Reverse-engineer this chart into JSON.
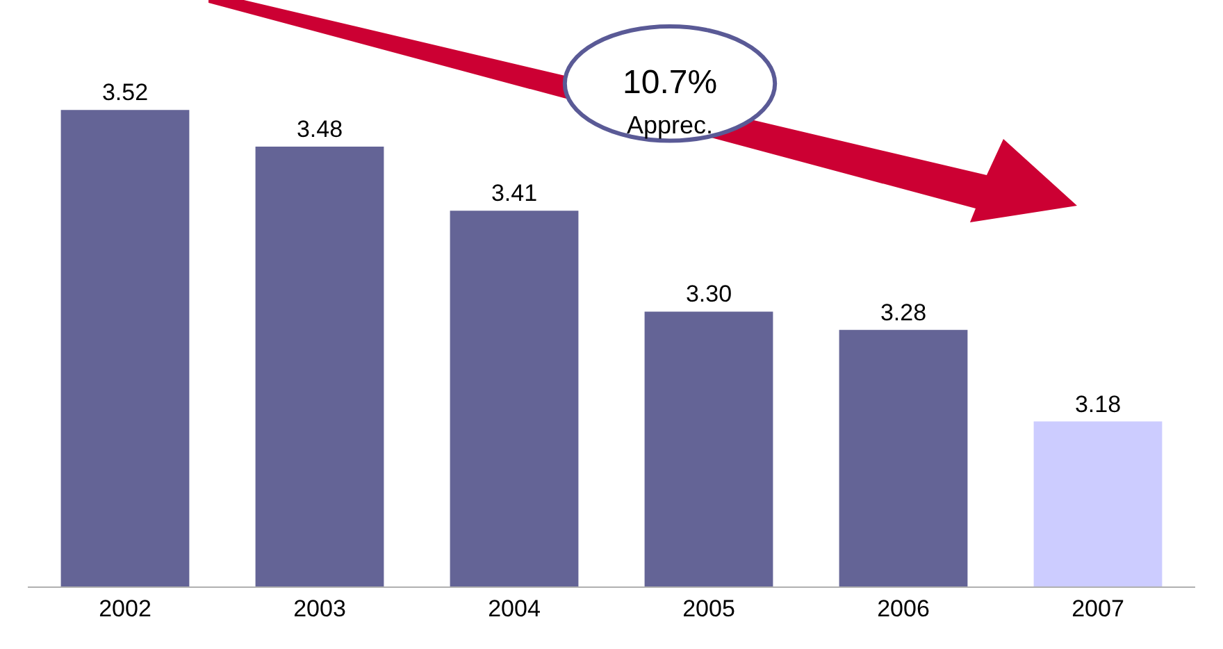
{
  "chart_data": {
    "type": "bar",
    "categories": [
      "2002",
      "2003",
      "2004",
      "2005",
      "2006",
      "2007"
    ],
    "values": [
      3.52,
      3.48,
      3.41,
      3.3,
      3.28,
      3.18
    ],
    "colors": [
      "#646496",
      "#646496",
      "#646496",
      "#646496",
      "#646496",
      "#ccccff"
    ],
    "ylim": [
      3.0,
      3.64
    ],
    "tick_labels": "x",
    "value_labels": [
      "3.52",
      "3.48",
      "3.41",
      "3.30",
      "3.28",
      "3.18"
    ],
    "data_labels": true,
    "annotations": [
      "10.7%",
      "Apprec."
    ]
  }
}
